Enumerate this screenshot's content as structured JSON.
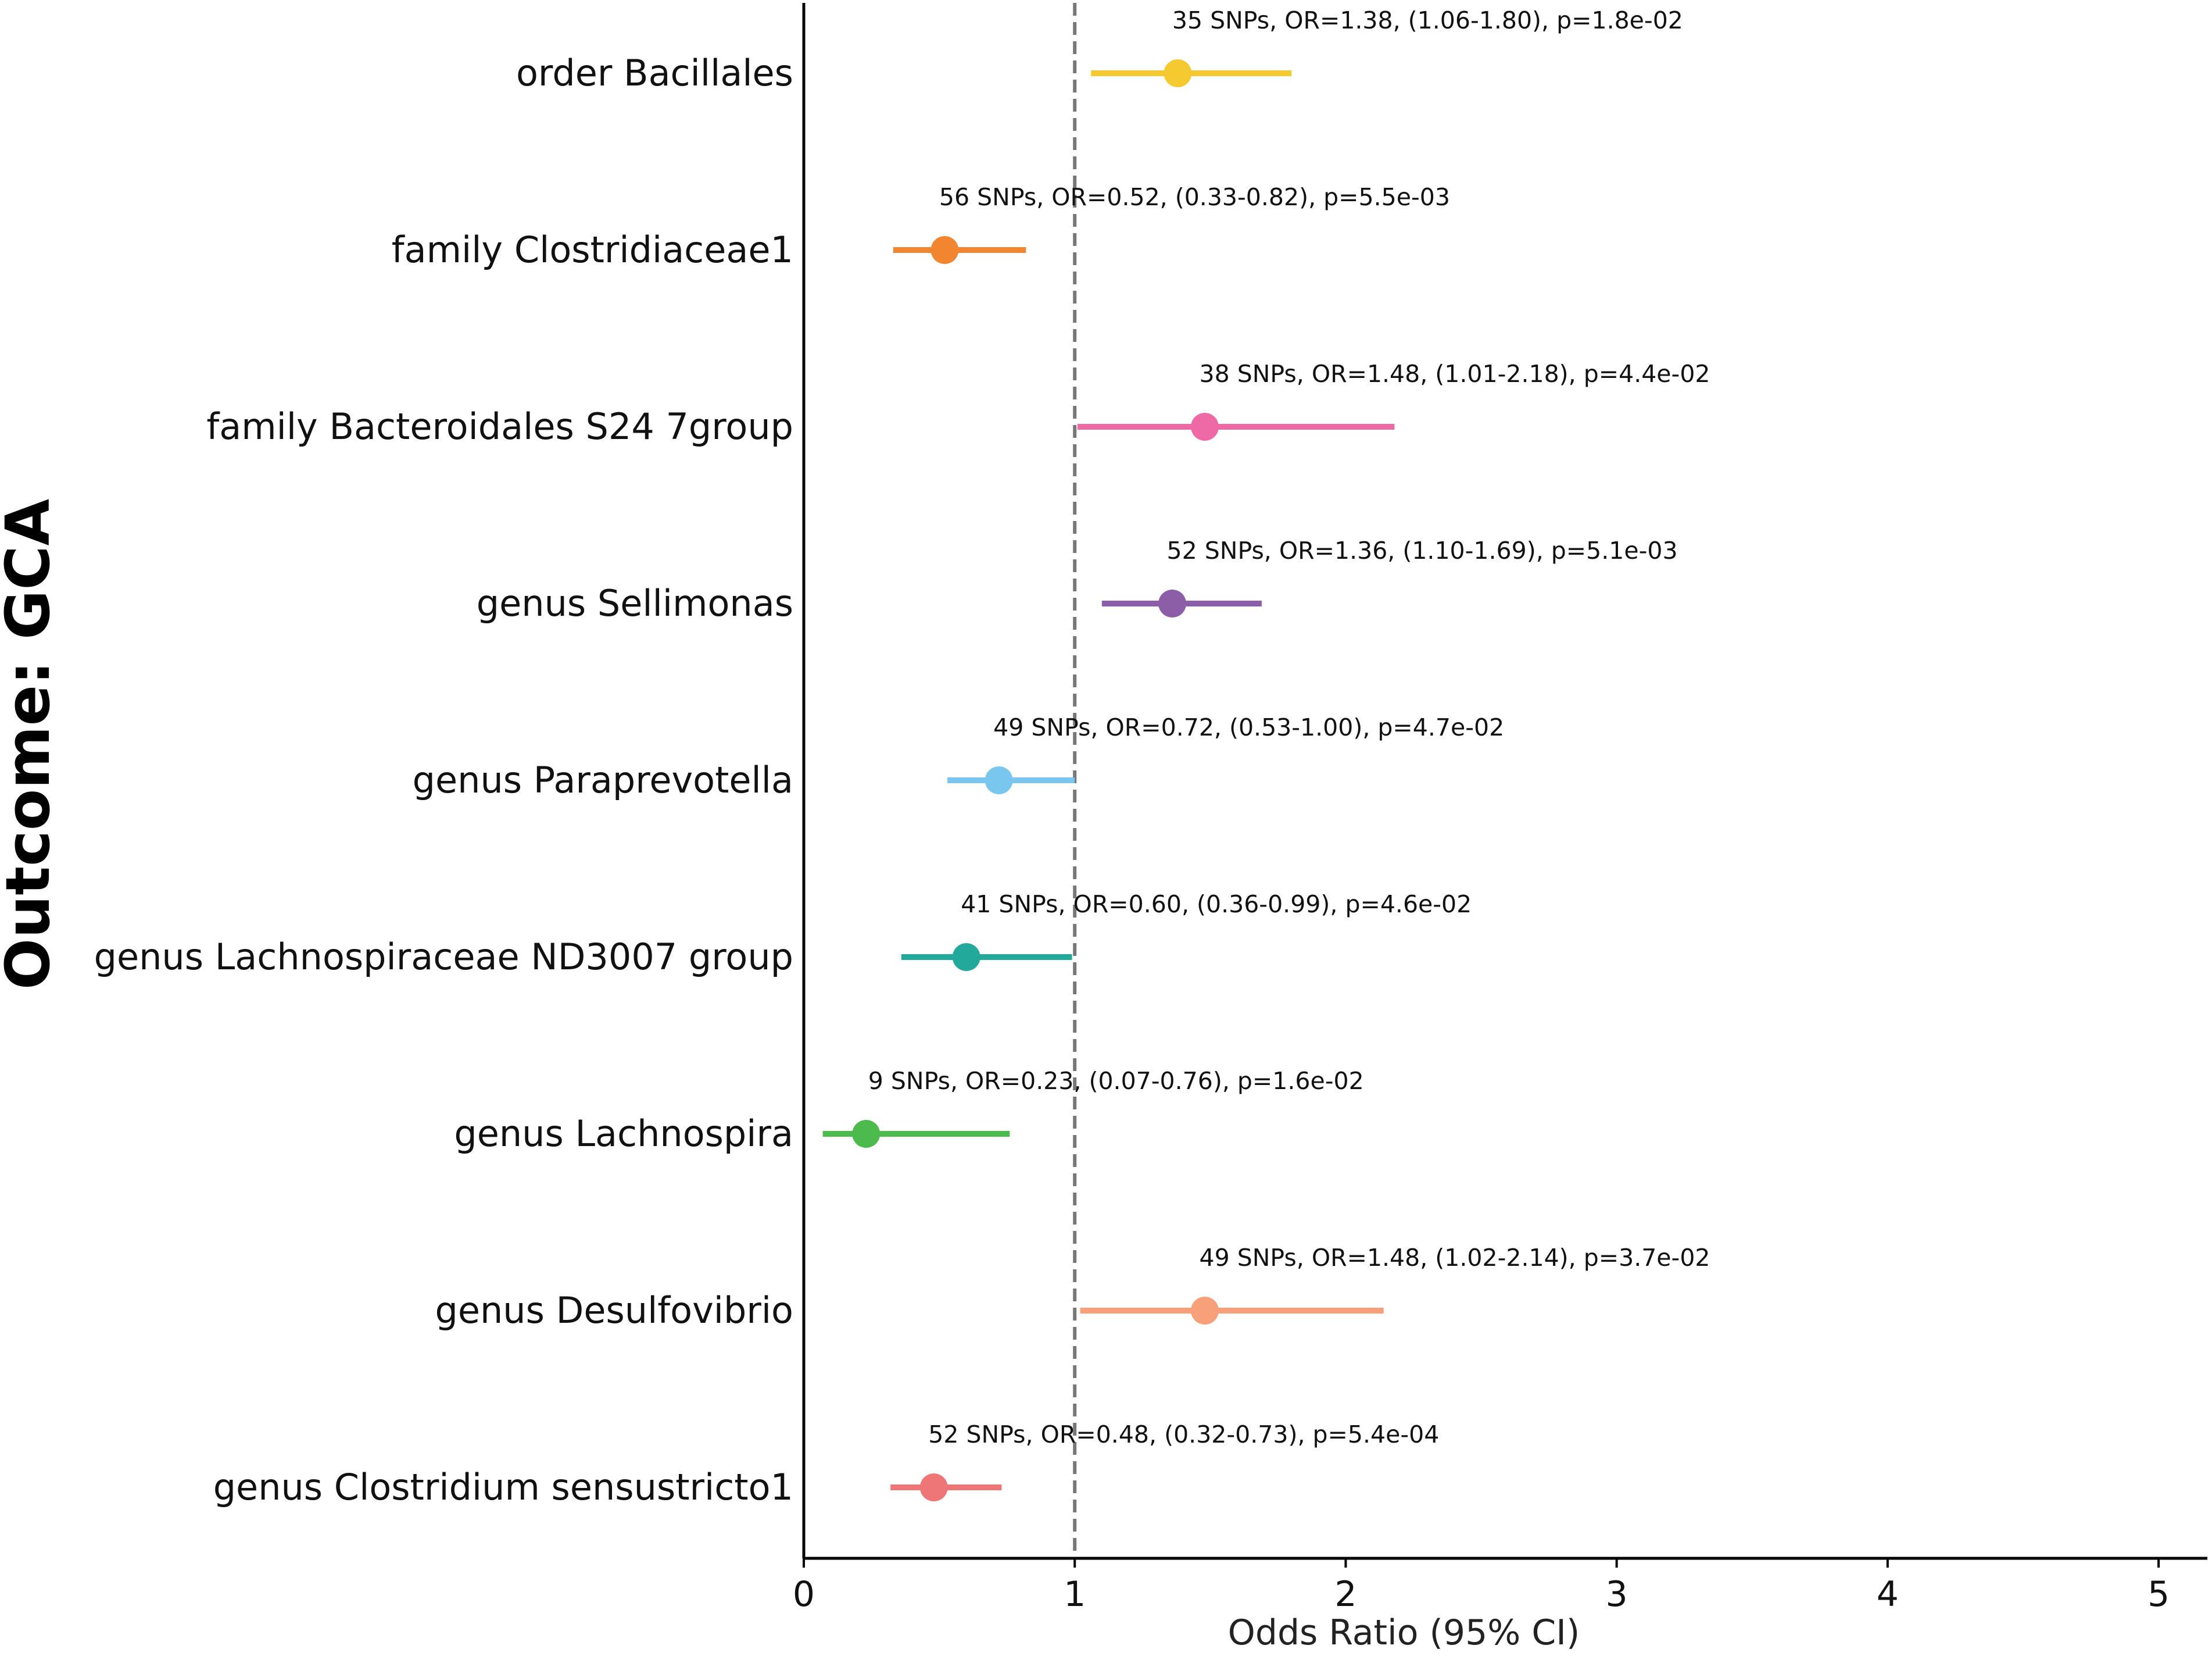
{
  "chart_data": {
    "type": "forest",
    "ylabel": "Outcome: GCA",
    "xlabel": "Odds Ratio (95% CI)",
    "xlim": [
      0,
      5.18
    ],
    "xticks": [
      0,
      1,
      2,
      3,
      4,
      5
    ],
    "tick_labels": [
      "0",
      "1",
      "2",
      "3",
      "4",
      "5"
    ],
    "reference_line": 1,
    "rows": [
      {
        "name": "order Bacillales",
        "or": 1.38,
        "lo": 1.06,
        "hi": 1.8,
        "snps": 35,
        "p": "1.8e-02",
        "color": "#f5c930",
        "annotation": "35 SNPs, OR=1.38, (1.06-1.80), p=1.8e-02"
      },
      {
        "name": "family Clostridiaceae1",
        "or": 0.52,
        "lo": 0.33,
        "hi": 0.82,
        "snps": 56,
        "p": "5.5e-03",
        "color": "#f28530",
        "annotation": "56 SNPs, OR=0.52, (0.33-0.82), p=5.5e-03"
      },
      {
        "name": "family Bacteroidales S24 7group",
        "or": 1.48,
        "lo": 1.01,
        "hi": 2.18,
        "snps": 38,
        "p": "4.4e-02",
        "color": "#ee6aa7",
        "annotation": "38 SNPs, OR=1.48, (1.01-2.18), p=4.4e-02"
      },
      {
        "name": "genus Sellimonas",
        "or": 1.36,
        "lo": 1.1,
        "hi": 1.69,
        "snps": 52,
        "p": "5.1e-03",
        "color": "#8d5ea8",
        "annotation": "52 SNPs, OR=1.36, (1.10-1.69), p=5.1e-03"
      },
      {
        "name": "genus Paraprevotella",
        "or": 0.72,
        "lo": 0.53,
        "hi": 1.0,
        "snps": 49,
        "p": "4.7e-02",
        "color": "#79c7ef",
        "annotation": "49 SNPs, OR=0.72, (0.53-1.00), p=4.7e-02"
      },
      {
        "name": "genus Lachnospiraceae ND3007 group",
        "or": 0.6,
        "lo": 0.36,
        "hi": 0.99,
        "snps": 41,
        "p": "4.6e-02",
        "color": "#22a99c",
        "annotation": "41 SNPs, OR=0.60, (0.36-0.99), p=4.6e-02"
      },
      {
        "name": "genus Lachnospira",
        "or": 0.23,
        "lo": 0.07,
        "hi": 0.76,
        "snps": 9,
        "p": "1.6e-02",
        "color": "#4cba4c",
        "annotation": "9 SNPs, OR=0.23, (0.07-0.76), p=1.6e-02"
      },
      {
        "name": "genus Desulfovibrio",
        "or": 1.48,
        "lo": 1.02,
        "hi": 2.14,
        "snps": 49,
        "p": "3.7e-02",
        "color": "#f8a07a",
        "annotation": "49 SNPs, OR=1.48, (1.02-2.14), p=3.7e-02"
      },
      {
        "name": "genus Clostridium sensustricto1",
        "or": 0.48,
        "lo": 0.32,
        "hi": 0.73,
        "snps": 52,
        "p": "5.4e-04",
        "color": "#ef7677",
        "annotation": "52 SNPs, OR=0.48, (0.32-0.73), p=5.4e-04"
      }
    ]
  }
}
